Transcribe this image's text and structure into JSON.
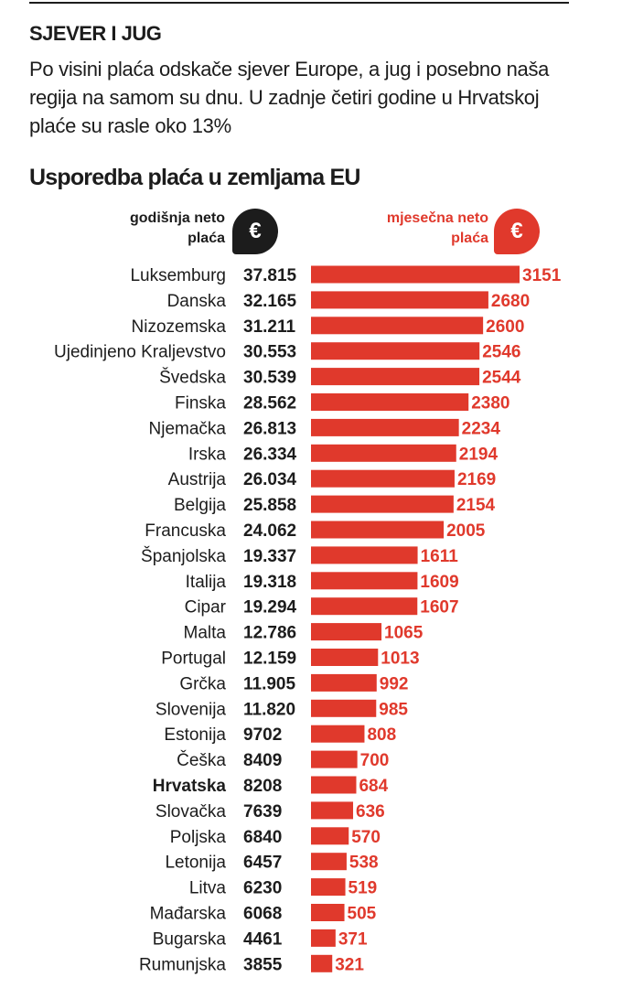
{
  "headline": "SJEVER I JUG",
  "intro": "Po visini plaća odskače sjever Europe, a jug i posebno naša regija na samom su dnu. U zadnje četiri godine u Hrvatskoj plaće su rasle oko 13%",
  "chart_data": {
    "type": "bar",
    "title": "Usporedba plaća u zemljama EU",
    "annual_label": "godišnja neto plaća",
    "monthly_label": "mjesečna neto plaća",
    "currency_symbol": "€",
    "highlight_category": "Hrvatska",
    "bar_color": "#e0392c",
    "text_color": "#1c1c1c",
    "categories": [
      "Luksemburg",
      "Danska",
      "Nizozemska",
      "Ujedinjeno Kraljevstvo",
      "Švedska",
      "Finska",
      "Njemačka",
      "Irska",
      "Austrija",
      "Belgija",
      "Francuska",
      "Španjolska",
      "Italija",
      "Cipar",
      "Malta",
      "Portugal",
      "Grčka",
      "Slovenija",
      "Estonija",
      "Češka",
      "Hrvatska",
      "Slovačka",
      "Poljska",
      "Letonija",
      "Litva",
      "Mađarska",
      "Bugarska",
      "Rumunjska"
    ],
    "series": [
      {
        "name": "godišnja neto plaća",
        "values": [
          37815,
          32165,
          31211,
          30553,
          30539,
          28562,
          26813,
          26334,
          26034,
          25858,
          24062,
          19337,
          19318,
          19294,
          12786,
          12159,
          11905,
          11820,
          9702,
          8409,
          8208,
          7639,
          6840,
          6457,
          6230,
          6068,
          4461,
          3855
        ],
        "display": [
          "37.815",
          "32.165",
          "31.211",
          "30.553",
          "30.539",
          "28.562",
          "26.813",
          "26.334",
          "26.034",
          "25.858",
          "24.062",
          "19.337",
          "19.318",
          "19.294",
          "12.786",
          "12.159",
          "11.905",
          "11.820",
          "9702",
          "8409",
          "8208",
          "7639",
          "6840",
          "6457",
          "6230",
          "6068",
          "4461",
          "3855"
        ]
      },
      {
        "name": "mjesečna neto plaća",
        "values": [
          3151,
          2680,
          2600,
          2546,
          2544,
          2380,
          2234,
          2194,
          2169,
          2154,
          2005,
          1611,
          1609,
          1607,
          1065,
          1013,
          992,
          985,
          808,
          700,
          684,
          636,
          570,
          538,
          519,
          505,
          371,
          321
        ]
      }
    ]
  }
}
